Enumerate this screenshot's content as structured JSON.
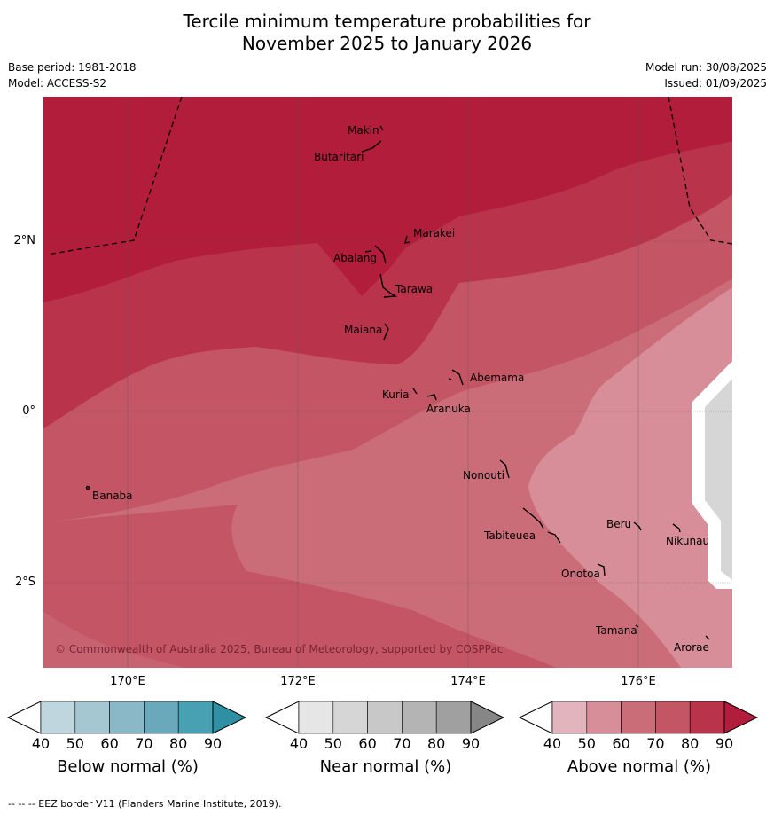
{
  "title_line1": "Tercile minimum temperature probabilities for",
  "title_line2": "November 2025 to January 2026",
  "base_period": "Base period: 1981-2018",
  "model": "Model: ACCESS-S2",
  "model_run": "Model run: 30/08/2025",
  "issued": "Issued: 01/09/2025",
  "copyright": "© Commonwealth of Australia 2025, Bureau of Meteorology, supported by COSPPac",
  "longitude_labels": [
    "170°E",
    "172°E",
    "174°E",
    "176°E"
  ],
  "latitude_labels": [
    "2°N",
    "0°",
    "2°S"
  ],
  "places": [
    "Makin",
    "Butaritari",
    "Marakei",
    "Abaiang",
    "Tarawa",
    "Maiana",
    "Abemama",
    "Kuria",
    "Aranuka",
    "Nonouti",
    "Banaba",
    "Beru",
    "Nikunau",
    "Tabiteuea",
    "Onotoa",
    "Tamana",
    "Arorae"
  ],
  "colorbars": [
    {
      "title": "Below normal (%)",
      "ticks": [
        "40",
        "50",
        "60",
        "70",
        "80",
        "90"
      ],
      "colors": [
        "#ffffff",
        "#bfd6de",
        "#a5c7d2",
        "#8bb8c6",
        "#6aa9bb",
        "#48a1b3",
        "#2f8fa3"
      ]
    },
    {
      "title": "Near normal (%)",
      "ticks": [
        "40",
        "50",
        "60",
        "70",
        "80",
        "90"
      ],
      "colors": [
        "#ffffff",
        "#e6e6e6",
        "#d6d6d6",
        "#c8c8c8",
        "#b4b4b4",
        "#a0a0a0",
        "#868686"
      ]
    },
    {
      "title": "Above normal (%)",
      "ticks": [
        "40",
        "50",
        "60",
        "70",
        "80",
        "90"
      ],
      "colors": [
        "#ffffff",
        "#e2b4bd",
        "#d78e98",
        "#ca6d78",
        "#c45564",
        "#b9344b",
        "#b11d3a"
      ]
    }
  ],
  "footnote": "--  --  -- EEZ border V11 (Flanders Marine Institute, 2019)."
}
